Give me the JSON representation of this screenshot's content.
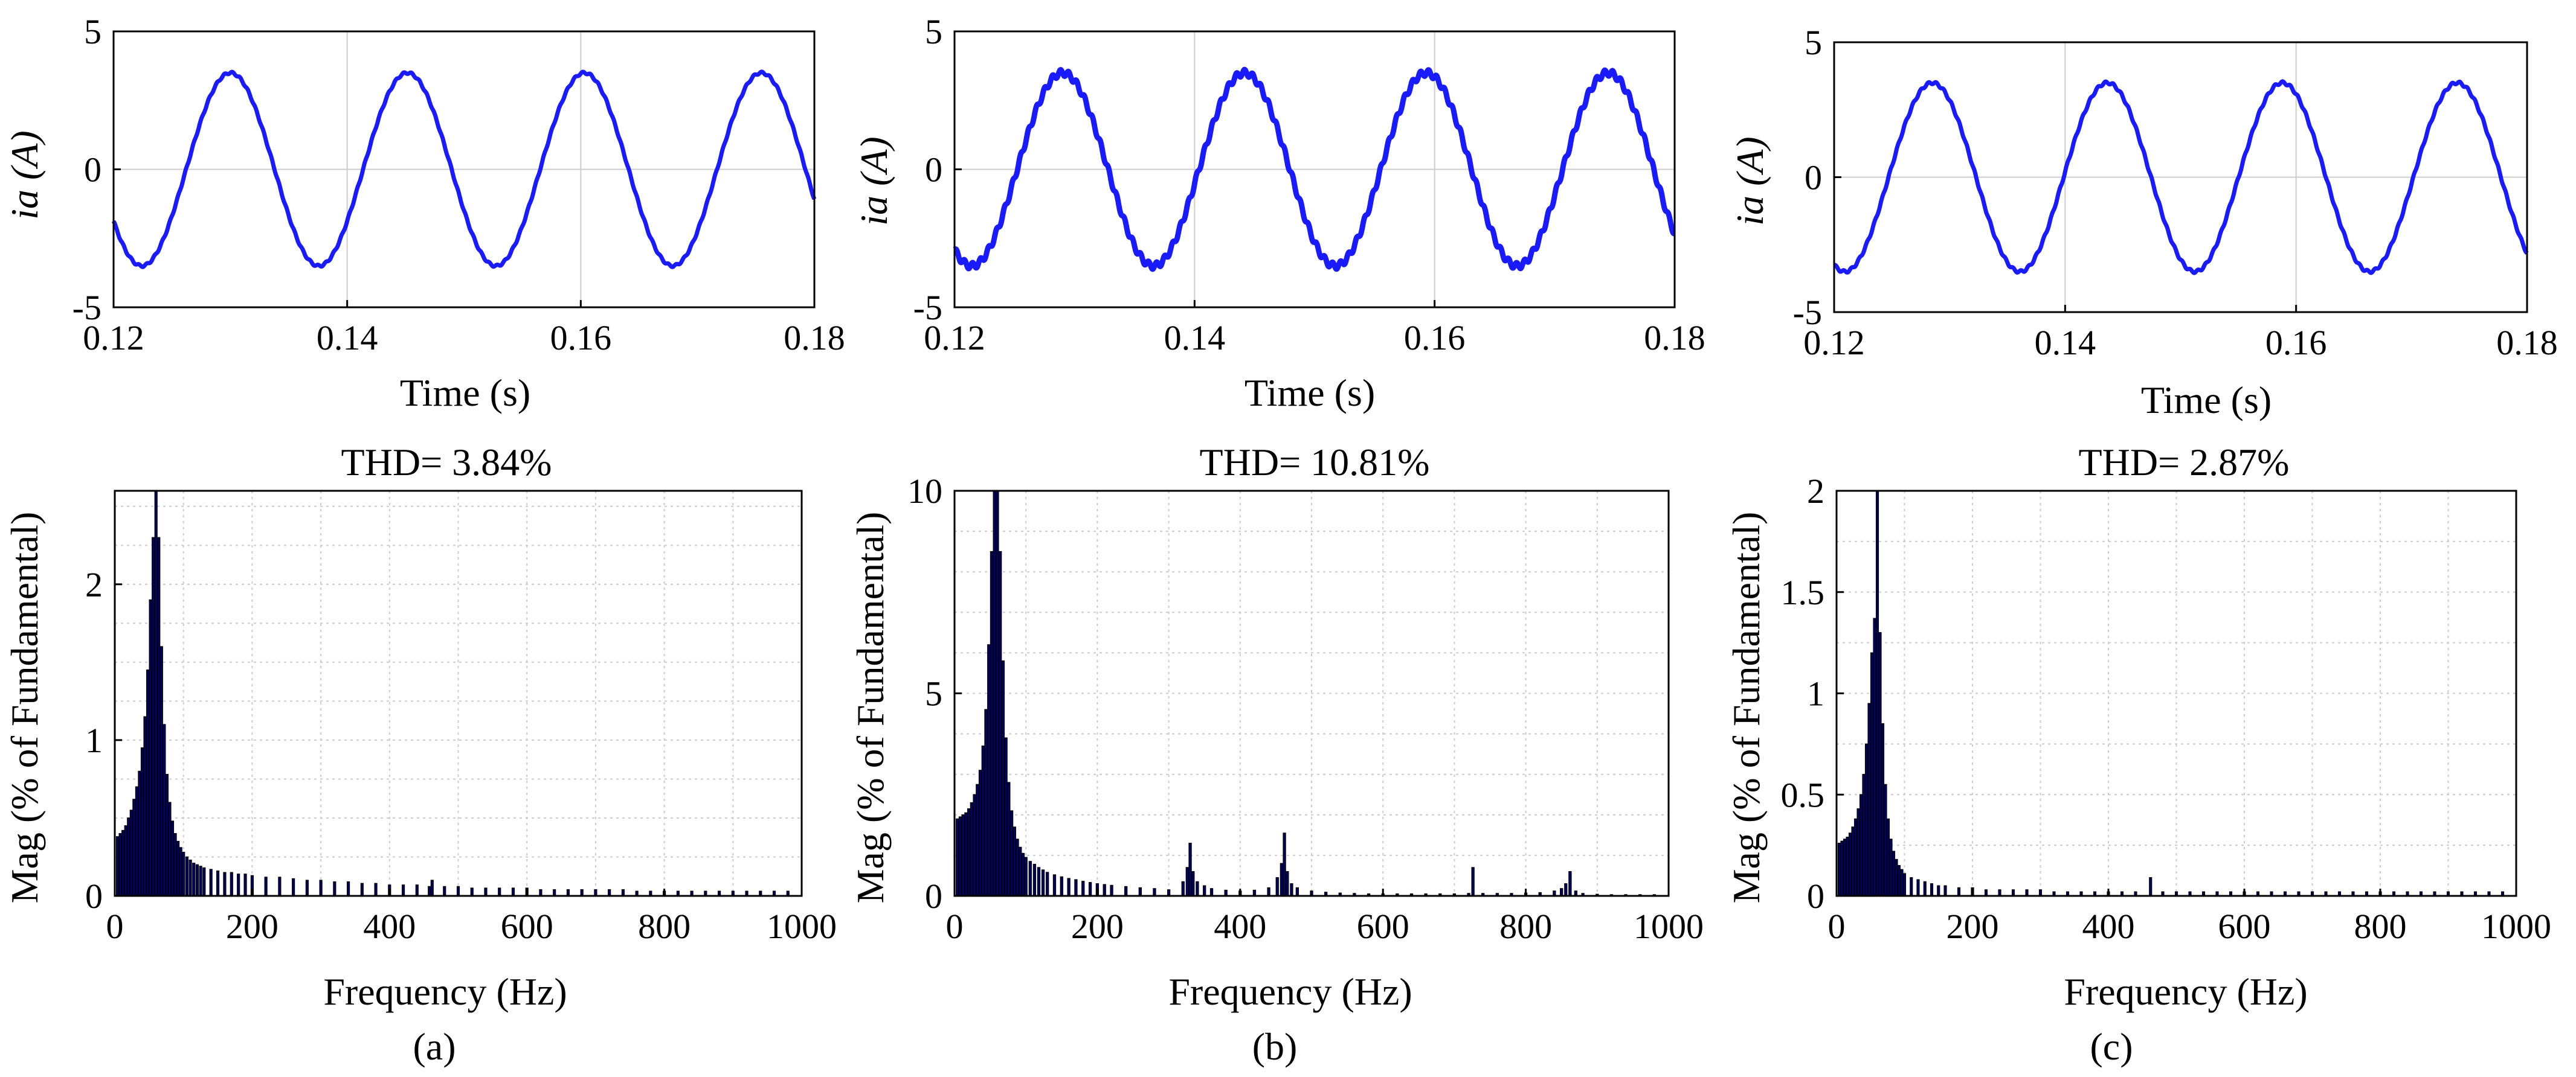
{
  "colors": {
    "wave": "#1a1aff",
    "bar_face": "#000080",
    "bar_edge": "#000000",
    "grid": "#cccccc",
    "axis": "#000000",
    "background": "#ffffff"
  },
  "captions": [
    "(a)",
    "(b)",
    "(c)"
  ],
  "chart_data": [
    {
      "type": "line",
      "panel": "a",
      "xlabel": "Time (s)",
      "ylabel": "ia (A)",
      "xlim": [
        0.12,
        0.18
      ],
      "ylim": [
        -5,
        5
      ],
      "xticks": [
        "0.12",
        "0.14",
        "0.16",
        "0.18"
      ],
      "yticks": [
        "-5",
        "0",
        "5"
      ],
      "grid": true,
      "series": [
        {
          "amplitude": 3.5,
          "frequency_hz": 66,
          "ripple": 0.04,
          "peaks_t": [
            0.13,
            0.1452,
            0.1605,
            0.1757
          ],
          "troughs_t": [
            0.1224,
            0.1376,
            0.1529,
            0.1681
          ]
        }
      ]
    },
    {
      "type": "line",
      "panel": "b",
      "xlabel": "Time (s)",
      "ylabel": "ia (A)",
      "xlim": [
        0.12,
        0.18
      ],
      "ylim": [
        -5,
        5
      ],
      "xticks": [
        "0.12",
        "0.14",
        "0.16",
        "0.18"
      ],
      "yticks": [
        "-5",
        "0",
        "5"
      ],
      "grid": true,
      "series": [
        {
          "amplitude": 3.5,
          "frequency_hz": 66,
          "ripple": 0.12,
          "peaks_t": [
            0.129,
            0.1442,
            0.1595,
            0.1747
          ],
          "troughs_t": [
            0.1214,
            0.1366,
            0.1519,
            0.1671
          ]
        }
      ]
    },
    {
      "type": "line",
      "panel": "c",
      "xlabel": "Time (s)",
      "ylabel": "ia (A)",
      "xlim": [
        0.12,
        0.18
      ],
      "ylim": [
        -5,
        5
      ],
      "xticks": [
        "0.12",
        "0.14",
        "0.16",
        "0.18"
      ],
      "yticks": [
        "-5",
        "0",
        "5"
      ],
      "grid": true,
      "series": [
        {
          "amplitude": 3.5,
          "frequency_hz": 66,
          "ripple": 0.05,
          "peaks_t": [
            0.1285,
            0.1437,
            0.159,
            0.1742
          ],
          "troughs_t": [
            0.1209,
            0.1361,
            0.1514,
            0.1666
          ]
        }
      ]
    },
    {
      "type": "bar",
      "panel": "a",
      "title": "THD= 3.84%",
      "xlabel": "Frequency (Hz)",
      "ylabel": "Mag (% of Fundamental)",
      "xlim": [
        0,
        1000
      ],
      "ylim": [
        0,
        2.6
      ],
      "xticks": [
        "0",
        "200",
        "400",
        "600",
        "800",
        "1000"
      ],
      "yticks": [
        "0",
        "1",
        "2"
      ],
      "grid": true,
      "bars": [
        [
          4,
          0.38
        ],
        [
          8,
          0.4
        ],
        [
          12,
          0.42
        ],
        [
          16,
          0.45
        ],
        [
          20,
          0.5
        ],
        [
          24,
          0.55
        ],
        [
          28,
          0.62
        ],
        [
          32,
          0.7
        ],
        [
          36,
          0.8
        ],
        [
          40,
          0.95
        ],
        [
          44,
          1.15
        ],
        [
          48,
          1.45
        ],
        [
          52,
          1.9
        ],
        [
          56,
          2.3
        ],
        [
          60,
          2.6
        ],
        [
          64,
          2.3
        ],
        [
          68,
          1.6
        ],
        [
          72,
          1.1
        ],
        [
          76,
          0.78
        ],
        [
          80,
          0.6
        ],
        [
          84,
          0.48
        ],
        [
          88,
          0.4
        ],
        [
          92,
          0.35
        ],
        [
          96,
          0.31
        ],
        [
          100,
          0.28
        ],
        [
          105,
          0.25
        ],
        [
          110,
          0.23
        ],
        [
          115,
          0.21
        ],
        [
          120,
          0.2
        ],
        [
          125,
          0.19
        ],
        [
          130,
          0.18
        ],
        [
          140,
          0.17
        ],
        [
          150,
          0.16
        ],
        [
          160,
          0.15
        ],
        [
          170,
          0.15
        ],
        [
          180,
          0.14
        ],
        [
          190,
          0.14
        ],
        [
          200,
          0.13
        ],
        [
          220,
          0.12
        ],
        [
          240,
          0.12
        ],
        [
          260,
          0.11
        ],
        [
          280,
          0.1
        ],
        [
          300,
          0.1
        ],
        [
          320,
          0.09
        ],
        [
          340,
          0.09
        ],
        [
          360,
          0.08
        ],
        [
          380,
          0.08
        ],
        [
          400,
          0.07
        ],
        [
          420,
          0.07
        ],
        [
          440,
          0.07
        ],
        [
          458,
          0.06
        ],
        [
          462,
          0.1
        ],
        [
          480,
          0.06
        ],
        [
          500,
          0.06
        ],
        [
          520,
          0.05
        ],
        [
          540,
          0.05
        ],
        [
          560,
          0.05
        ],
        [
          580,
          0.05
        ],
        [
          600,
          0.05
        ],
        [
          620,
          0.04
        ],
        [
          640,
          0.04
        ],
        [
          660,
          0.04
        ],
        [
          680,
          0.04
        ],
        [
          700,
          0.04
        ],
        [
          720,
          0.04
        ],
        [
          740,
          0.04
        ],
        [
          760,
          0.03
        ],
        [
          780,
          0.03
        ],
        [
          800,
          0.03
        ],
        [
          820,
          0.03
        ],
        [
          840,
          0.03
        ],
        [
          860,
          0.03
        ],
        [
          880,
          0.03
        ],
        [
          900,
          0.03
        ],
        [
          920,
          0.03
        ],
        [
          940,
          0.03
        ],
        [
          960,
          0.03
        ],
        [
          980,
          0.03
        ]
      ]
    },
    {
      "type": "bar",
      "panel": "b",
      "title": "THD= 10.81%",
      "xlabel": "Frequency (Hz)",
      "ylabel": "Mag (% of Fundamental)",
      "xlim": [
        0,
        1000
      ],
      "ylim": [
        0,
        10
      ],
      "xticks": [
        "0",
        "200",
        "400",
        "600",
        "800",
        "1000"
      ],
      "yticks": [
        "0",
        "5",
        "10"
      ],
      "grid": true,
      "bars": [
        [
          4,
          1.9
        ],
        [
          8,
          1.95
        ],
        [
          12,
          2.0
        ],
        [
          16,
          2.05
        ],
        [
          20,
          2.15
        ],
        [
          24,
          2.3
        ],
        [
          28,
          2.5
        ],
        [
          32,
          2.75
        ],
        [
          36,
          3.1
        ],
        [
          40,
          3.7
        ],
        [
          44,
          4.6
        ],
        [
          48,
          6.2
        ],
        [
          52,
          8.5
        ],
        [
          56,
          10.0
        ],
        [
          60,
          10.0
        ],
        [
          64,
          8.5
        ],
        [
          68,
          5.8
        ],
        [
          72,
          3.9
        ],
        [
          76,
          2.8
        ],
        [
          80,
          2.1
        ],
        [
          84,
          1.7
        ],
        [
          88,
          1.4
        ],
        [
          92,
          1.2
        ],
        [
          96,
          1.05
        ],
        [
          100,
          0.95
        ],
        [
          106,
          0.85
        ],
        [
          112,
          0.78
        ],
        [
          118,
          0.7
        ],
        [
          124,
          0.64
        ],
        [
          130,
          0.58
        ],
        [
          140,
          0.52
        ],
        [
          150,
          0.47
        ],
        [
          160,
          0.43
        ],
        [
          170,
          0.4
        ],
        [
          180,
          0.36
        ],
        [
          190,
          0.33
        ],
        [
          200,
          0.3
        ],
        [
          210,
          0.28
        ],
        [
          220,
          0.26
        ],
        [
          240,
          0.23
        ],
        [
          260,
          0.2
        ],
        [
          280,
          0.18
        ],
        [
          300,
          0.15
        ],
        [
          320,
          0.35
        ],
        [
          326,
          0.7
        ],
        [
          330,
          1.3
        ],
        [
          334,
          0.6
        ],
        [
          340,
          0.35
        ],
        [
          350,
          0.25
        ],
        [
          360,
          0.18
        ],
        [
          380,
          0.14
        ],
        [
          400,
          0.12
        ],
        [
          420,
          0.14
        ],
        [
          440,
          0.2
        ],
        [
          452,
          0.45
        ],
        [
          458,
          0.8
        ],
        [
          462,
          1.55
        ],
        [
          466,
          0.6
        ],
        [
          472,
          0.3
        ],
        [
          480,
          0.2
        ],
        [
          500,
          0.12
        ],
        [
          520,
          0.09
        ],
        [
          540,
          0.07
        ],
        [
          560,
          0.06
        ],
        [
          580,
          0.05
        ],
        [
          600,
          0.05
        ],
        [
          620,
          0.05
        ],
        [
          640,
          0.05
        ],
        [
          660,
          0.05
        ],
        [
          680,
          0.05
        ],
        [
          700,
          0.05
        ],
        [
          720,
          0.06
        ],
        [
          726,
          0.7
        ],
        [
          740,
          0.06
        ],
        [
          760,
          0.06
        ],
        [
          780,
          0.06
        ],
        [
          800,
          0.07
        ],
        [
          820,
          0.08
        ],
        [
          840,
          0.12
        ],
        [
          850,
          0.18
        ],
        [
          856,
          0.3
        ],
        [
          862,
          0.6
        ],
        [
          870,
          0.12
        ],
        [
          880,
          0.06
        ],
        [
          900,
          0.04
        ],
        [
          920,
          0.03
        ],
        [
          940,
          0.03
        ],
        [
          960,
          0.03
        ],
        [
          980,
          0.03
        ]
      ]
    },
    {
      "type": "bar",
      "panel": "c",
      "title": "THD= 2.87%",
      "xlabel": "Frequency (Hz)",
      "ylabel": "Mag (% of Fundamental)",
      "xlim": [
        0,
        1000
      ],
      "ylim": [
        0,
        2.0
      ],
      "xticks": [
        "0",
        "200",
        "400",
        "600",
        "800",
        "1000"
      ],
      "yticks": [
        "0",
        "0.5",
        "1",
        "1.5",
        "2"
      ],
      "grid": true,
      "bars": [
        [
          4,
          0.26
        ],
        [
          8,
          0.27
        ],
        [
          12,
          0.28
        ],
        [
          16,
          0.29
        ],
        [
          20,
          0.31
        ],
        [
          24,
          0.34
        ],
        [
          28,
          0.38
        ],
        [
          32,
          0.43
        ],
        [
          36,
          0.5
        ],
        [
          40,
          0.6
        ],
        [
          44,
          0.75
        ],
        [
          48,
          0.95
        ],
        [
          52,
          1.2
        ],
        [
          56,
          1.37
        ],
        [
          60,
          2.0
        ],
        [
          64,
          1.3
        ],
        [
          68,
          0.85
        ],
        [
          72,
          0.55
        ],
        [
          76,
          0.38
        ],
        [
          80,
          0.28
        ],
        [
          84,
          0.22
        ],
        [
          88,
          0.18
        ],
        [
          92,
          0.15
        ],
        [
          96,
          0.13
        ],
        [
          100,
          0.11
        ],
        [
          110,
          0.09
        ],
        [
          120,
          0.08
        ],
        [
          130,
          0.07
        ],
        [
          140,
          0.06
        ],
        [
          150,
          0.05
        ],
        [
          160,
          0.05
        ],
        [
          180,
          0.04
        ],
        [
          200,
          0.04
        ],
        [
          220,
          0.03
        ],
        [
          240,
          0.03
        ],
        [
          260,
          0.03
        ],
        [
          280,
          0.03
        ],
        [
          300,
          0.03
        ],
        [
          320,
          0.02
        ],
        [
          340,
          0.02
        ],
        [
          360,
          0.02
        ],
        [
          380,
          0.02
        ],
        [
          400,
          0.02
        ],
        [
          420,
          0.02
        ],
        [
          440,
          0.02
        ],
        [
          462,
          0.09
        ],
        [
          480,
          0.02
        ],
        [
          500,
          0.02
        ],
        [
          520,
          0.02
        ],
        [
          540,
          0.02
        ],
        [
          560,
          0.02
        ],
        [
          580,
          0.02
        ],
        [
          600,
          0.02
        ],
        [
          620,
          0.02
        ],
        [
          640,
          0.02
        ],
        [
          660,
          0.02
        ],
        [
          680,
          0.02
        ],
        [
          700,
          0.02
        ],
        [
          720,
          0.02
        ],
        [
          740,
          0.02
        ],
        [
          760,
          0.02
        ],
        [
          780,
          0.02
        ],
        [
          800,
          0.02
        ],
        [
          820,
          0.02
        ],
        [
          840,
          0.02
        ],
        [
          860,
          0.02
        ],
        [
          880,
          0.02
        ],
        [
          900,
          0.02
        ],
        [
          920,
          0.02
        ],
        [
          940,
          0.02
        ],
        [
          960,
          0.02
        ],
        [
          980,
          0.02
        ]
      ]
    }
  ]
}
